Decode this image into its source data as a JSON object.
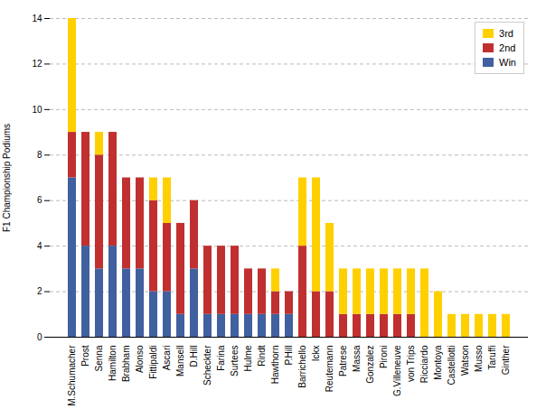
{
  "chart_data": {
    "type": "bar",
    "stacked": true,
    "categories": [
      "M.Schumacher",
      "Prost",
      "Senna",
      "Hamilton",
      "Brabham",
      "Alonso",
      "Fittipaldi",
      "Ascari",
      "Mansell",
      "D.Hill",
      "Scheckter",
      "Farina",
      "Surtees",
      "Hulme",
      "Rindt",
      "Hawthorn",
      "P.Hill",
      "Barrichello",
      "Ickx",
      "Reutemann",
      "Patrese",
      "Massa",
      "Gonzalez",
      "Pironi",
      "G.Villeneuve",
      "von Trips",
      "Ricciardo",
      "Montoya",
      "Castellotti",
      "Watson",
      "Musso",
      "Taruffi",
      "Ginther"
    ],
    "series": [
      {
        "name": "Win",
        "color": "#4060A0",
        "values": [
          7,
          4,
          3,
          4,
          3,
          3,
          2,
          2,
          1,
          3,
          1,
          1,
          1,
          1,
          1,
          1,
          1,
          0,
          0,
          0,
          0,
          0,
          0,
          0,
          0,
          0,
          0,
          0,
          0,
          0,
          0,
          0,
          0
        ]
      },
      {
        "name": "2nd",
        "color": "#C03030",
        "values": [
          2,
          5,
          5,
          5,
          4,
          4,
          4,
          3,
          4,
          3,
          3,
          3,
          3,
          2,
          2,
          1,
          1,
          4,
          2,
          2,
          1,
          1,
          1,
          1,
          1,
          1,
          0,
          0,
          0,
          0,
          0,
          0,
          0
        ]
      },
      {
        "name": "3rd",
        "color": "#FFD000",
        "values": [
          5,
          0,
          1,
          0,
          0,
          0,
          1,
          2,
          0,
          0,
          0,
          0,
          0,
          0,
          0,
          1,
          0,
          3,
          5,
          3,
          2,
          2,
          2,
          2,
          2,
          2,
          3,
          2,
          1,
          1,
          1,
          1,
          1
        ]
      }
    ],
    "ylabel": "F1 Championship Podiums",
    "ylim": [
      0,
      14
    ],
    "yticks": [
      0,
      2,
      4,
      6,
      8,
      10,
      12,
      14
    ],
    "grid": true,
    "legend": "upper right"
  }
}
